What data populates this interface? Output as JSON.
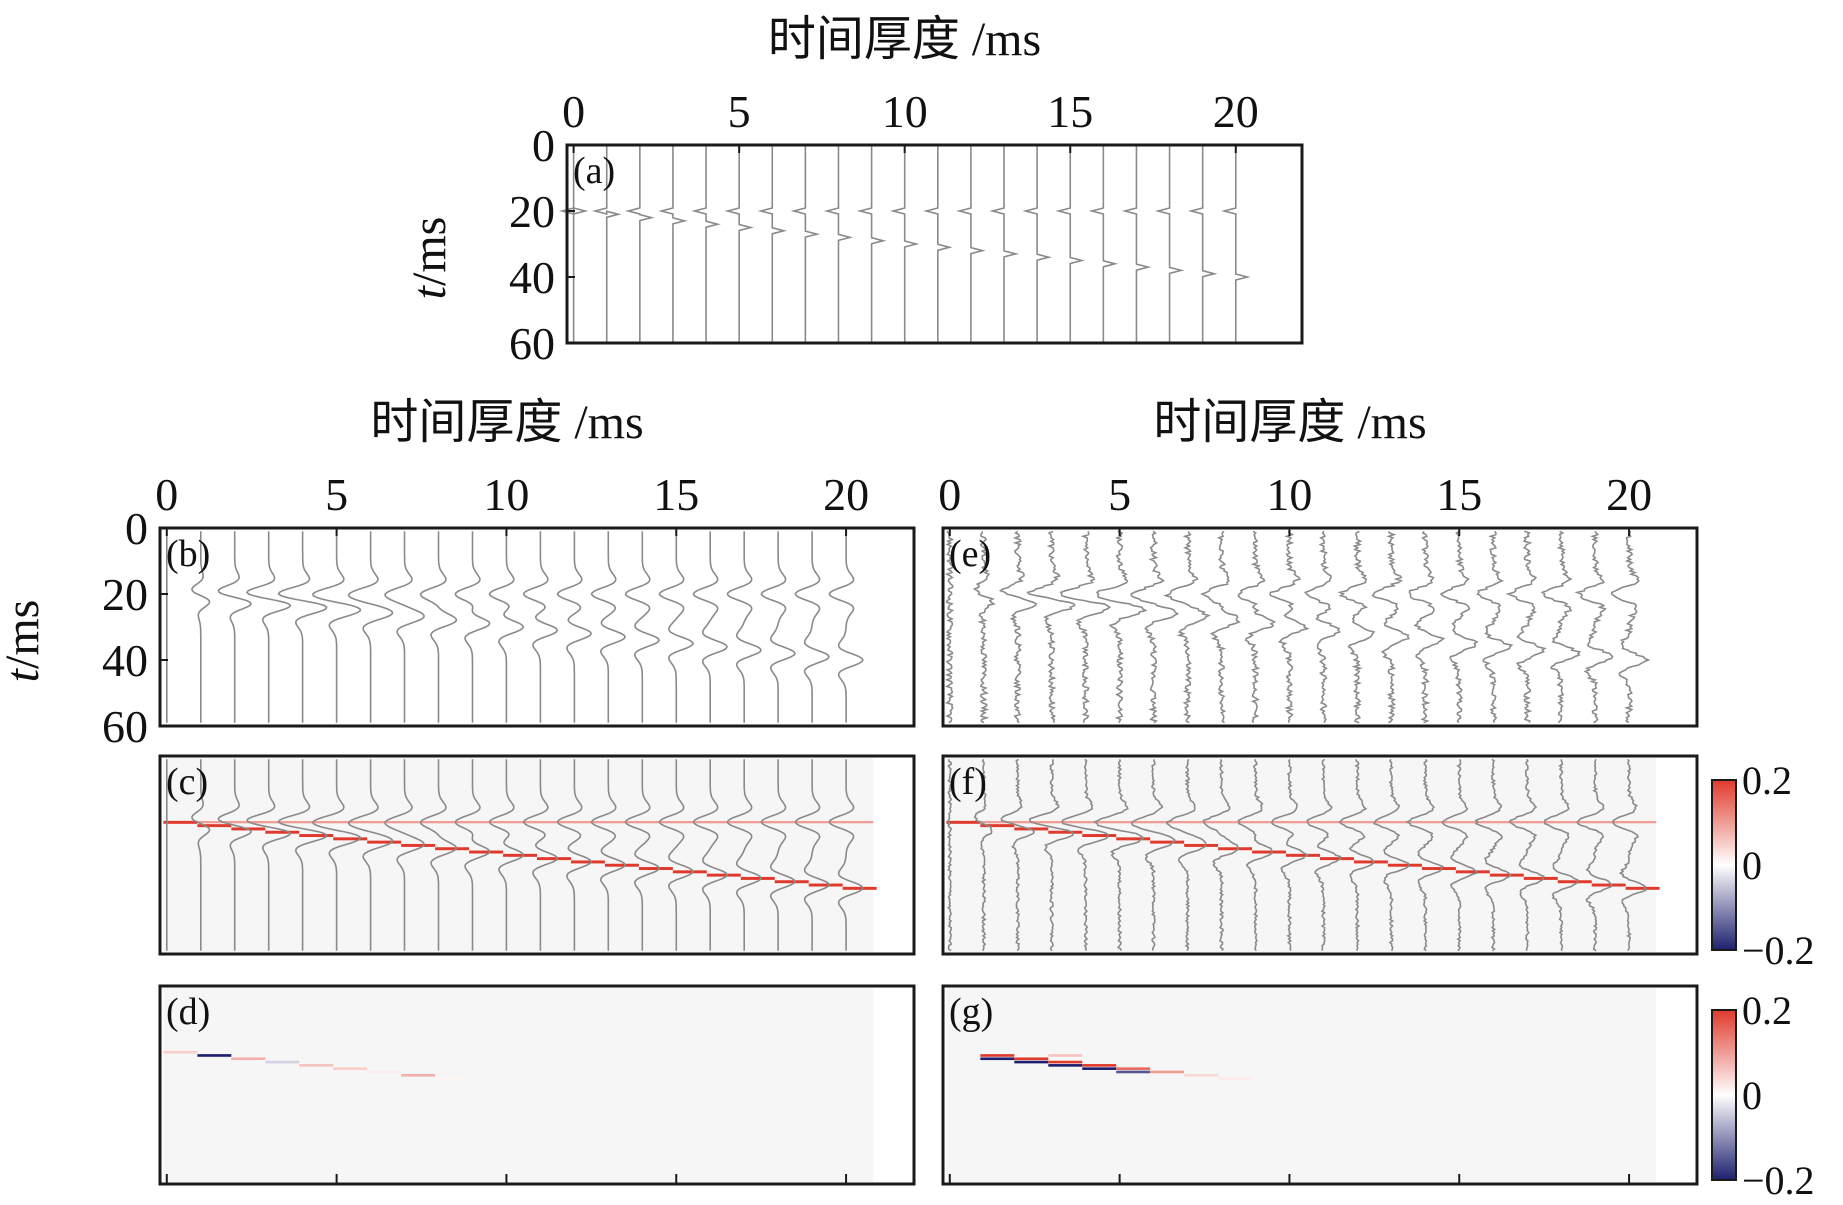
{
  "chart_data": [
    {
      "id": "a",
      "type": "line",
      "panel_label": "(a)",
      "title": "时间厚度 /ms",
      "ylabel": "t/ms",
      "x_ticks": [
        "0",
        "5",
        "10",
        "15",
        "20"
      ],
      "y_ticks": [
        "0",
        "20",
        "40",
        "60"
      ],
      "xlim": [
        -0.2,
        22
      ],
      "ylim": [
        0,
        60
      ],
      "traces_x": [
        0,
        1,
        2,
        3,
        4,
        5,
        6,
        7,
        8,
        9,
        10,
        11,
        12,
        13,
        14,
        15,
        16,
        17,
        18,
        19,
        20
      ],
      "top_reflector_ms": 20,
      "bottom_reflector_ms": [
        20,
        21,
        22,
        23,
        24,
        25,
        26,
        27,
        28,
        29,
        30,
        31,
        32,
        33,
        34,
        35,
        36,
        37,
        38,
        39,
        40
      ],
      "wavelet": "spike"
    },
    {
      "id": "b",
      "type": "line",
      "panel_label": "(b)",
      "title": "时间厚度 /ms",
      "ylabel": "t/ms",
      "x_ticks": [
        "0",
        "5",
        "10",
        "15",
        "20"
      ],
      "y_ticks": [
        "0",
        "20",
        "40",
        "60"
      ],
      "xlim": [
        -0.2,
        22
      ],
      "ylim": [
        0,
        60
      ],
      "traces_x": [
        0,
        1,
        2,
        3,
        4,
        5,
        6,
        7,
        8,
        9,
        10,
        11,
        12,
        13,
        14,
        15,
        16,
        17,
        18,
        19,
        20
      ],
      "top_reflector_ms": 20,
      "bottom_reflector_ms": [
        20,
        21,
        22,
        23,
        24,
        25,
        26,
        27,
        28,
        29,
        30,
        31,
        32,
        33,
        34,
        35,
        36,
        37,
        38,
        39,
        40
      ],
      "wavelet": "ricker",
      "noise": 0
    },
    {
      "id": "c",
      "type": "heatmap",
      "panel_label": "(c)",
      "xlim": [
        -0.2,
        22
      ],
      "ylim": [
        0,
        60
      ],
      "traces_x": [
        0,
        1,
        2,
        3,
        4,
        5,
        6,
        7,
        8,
        9,
        10,
        11,
        12,
        13,
        14,
        15,
        16,
        17,
        18,
        19,
        20
      ],
      "top_reflector_ms": 20,
      "bottom_reflector_ms": [
        20,
        21,
        22,
        23,
        24,
        25,
        26,
        27,
        28,
        29,
        30,
        31,
        32,
        33,
        34,
        35,
        36,
        37,
        38,
        39,
        40
      ],
      "top_amplitude": 0.1,
      "bottom_amplitude": 0.2,
      "overlay_traces": true
    },
    {
      "id": "d",
      "type": "heatmap",
      "panel_label": "(d)",
      "xlim": [
        -0.2,
        22
      ],
      "ylim": [
        0,
        60
      ],
      "traces_x": [
        0,
        1,
        2,
        3,
        4,
        5,
        6,
        7,
        8,
        9,
        10,
        11,
        12,
        13,
        14,
        15,
        16,
        17,
        18,
        19,
        20
      ],
      "error_cells": [
        {
          "x": 0,
          "t": 20,
          "v": 0.05
        },
        {
          "x": 1,
          "t": 21,
          "v": -0.2
        },
        {
          "x": 2,
          "t": 22,
          "v": 0.08
        },
        {
          "x": 3,
          "t": 23,
          "v": -0.04
        },
        {
          "x": 4,
          "t": 24,
          "v": 0.06
        },
        {
          "x": 5,
          "t": 25,
          "v": 0.05
        },
        {
          "x": 6,
          "t": 26,
          "v": 0.02
        },
        {
          "x": 7,
          "t": 27,
          "v": 0.08
        },
        {
          "x": 8,
          "t": 28,
          "v": 0.01
        }
      ]
    },
    {
      "id": "e",
      "type": "line",
      "panel_label": "(e)",
      "title": "时间厚度 /ms",
      "x_ticks": [
        "0",
        "5",
        "10",
        "15",
        "20"
      ],
      "xlim": [
        -0.2,
        22
      ],
      "ylim": [
        0,
        60
      ],
      "traces_x": [
        0,
        1,
        2,
        3,
        4,
        5,
        6,
        7,
        8,
        9,
        10,
        11,
        12,
        13,
        14,
        15,
        16,
        17,
        18,
        19,
        20
      ],
      "top_reflector_ms": 20,
      "bottom_reflector_ms": [
        20,
        21,
        22,
        23,
        24,
        25,
        26,
        27,
        28,
        29,
        30,
        31,
        32,
        33,
        34,
        35,
        36,
        37,
        38,
        39,
        40
      ],
      "wavelet": "ricker",
      "noise": 0.06
    },
    {
      "id": "f",
      "type": "heatmap",
      "panel_label": "(f)",
      "xlim": [
        -0.2,
        22
      ],
      "ylim": [
        0,
        60
      ],
      "traces_x": [
        0,
        1,
        2,
        3,
        4,
        5,
        6,
        7,
        8,
        9,
        10,
        11,
        12,
        13,
        14,
        15,
        16,
        17,
        18,
        19,
        20
      ],
      "top_reflector_ms": 20,
      "bottom_reflector_ms": [
        20,
        21,
        22,
        23,
        24,
        25,
        26,
        27,
        28,
        29,
        30,
        31,
        32,
        33,
        34,
        35,
        36,
        37,
        38,
        39,
        40
      ],
      "top_amplitude": 0.1,
      "bottom_amplitude": 0.2,
      "overlay_traces": true,
      "colorbar": {
        "ticks": [
          "0.2",
          "0",
          "−0.2"
        ],
        "range": [
          -0.2,
          0.2
        ]
      }
    },
    {
      "id": "g",
      "type": "heatmap",
      "panel_label": "(g)",
      "xlim": [
        -0.2,
        22
      ],
      "ylim": [
        0,
        60
      ],
      "traces_x": [
        0,
        1,
        2,
        3,
        4,
        5,
        6,
        7,
        8,
        9,
        10,
        11,
        12,
        13,
        14,
        15,
        16,
        17,
        18,
        19,
        20
      ],
      "error_cells": [
        {
          "x": 1,
          "t": 21,
          "v": 0.2
        },
        {
          "x": 1,
          "t": 22,
          "v": -0.2
        },
        {
          "x": 2,
          "t": 22,
          "v": 0.2
        },
        {
          "x": 2,
          "t": 23,
          "v": -0.2
        },
        {
          "x": 3,
          "t": 21,
          "v": 0.06
        },
        {
          "x": 3,
          "t": 23,
          "v": 0.2
        },
        {
          "x": 3,
          "t": 24,
          "v": -0.2
        },
        {
          "x": 4,
          "t": 24,
          "v": 0.2
        },
        {
          "x": 4,
          "t": 25,
          "v": -0.2
        },
        {
          "x": 5,
          "t": 25,
          "v": 0.15
        },
        {
          "x": 5,
          "t": 26,
          "v": -0.15
        },
        {
          "x": 6,
          "t": 26,
          "v": 0.1
        },
        {
          "x": 7,
          "t": 27,
          "v": 0.04
        },
        {
          "x": 8,
          "t": 28,
          "v": 0.02
        }
      ],
      "colorbar": {
        "ticks": [
          "0.2",
          "0",
          "−0.2"
        ],
        "range": [
          -0.2,
          0.2
        ]
      }
    }
  ]
}
